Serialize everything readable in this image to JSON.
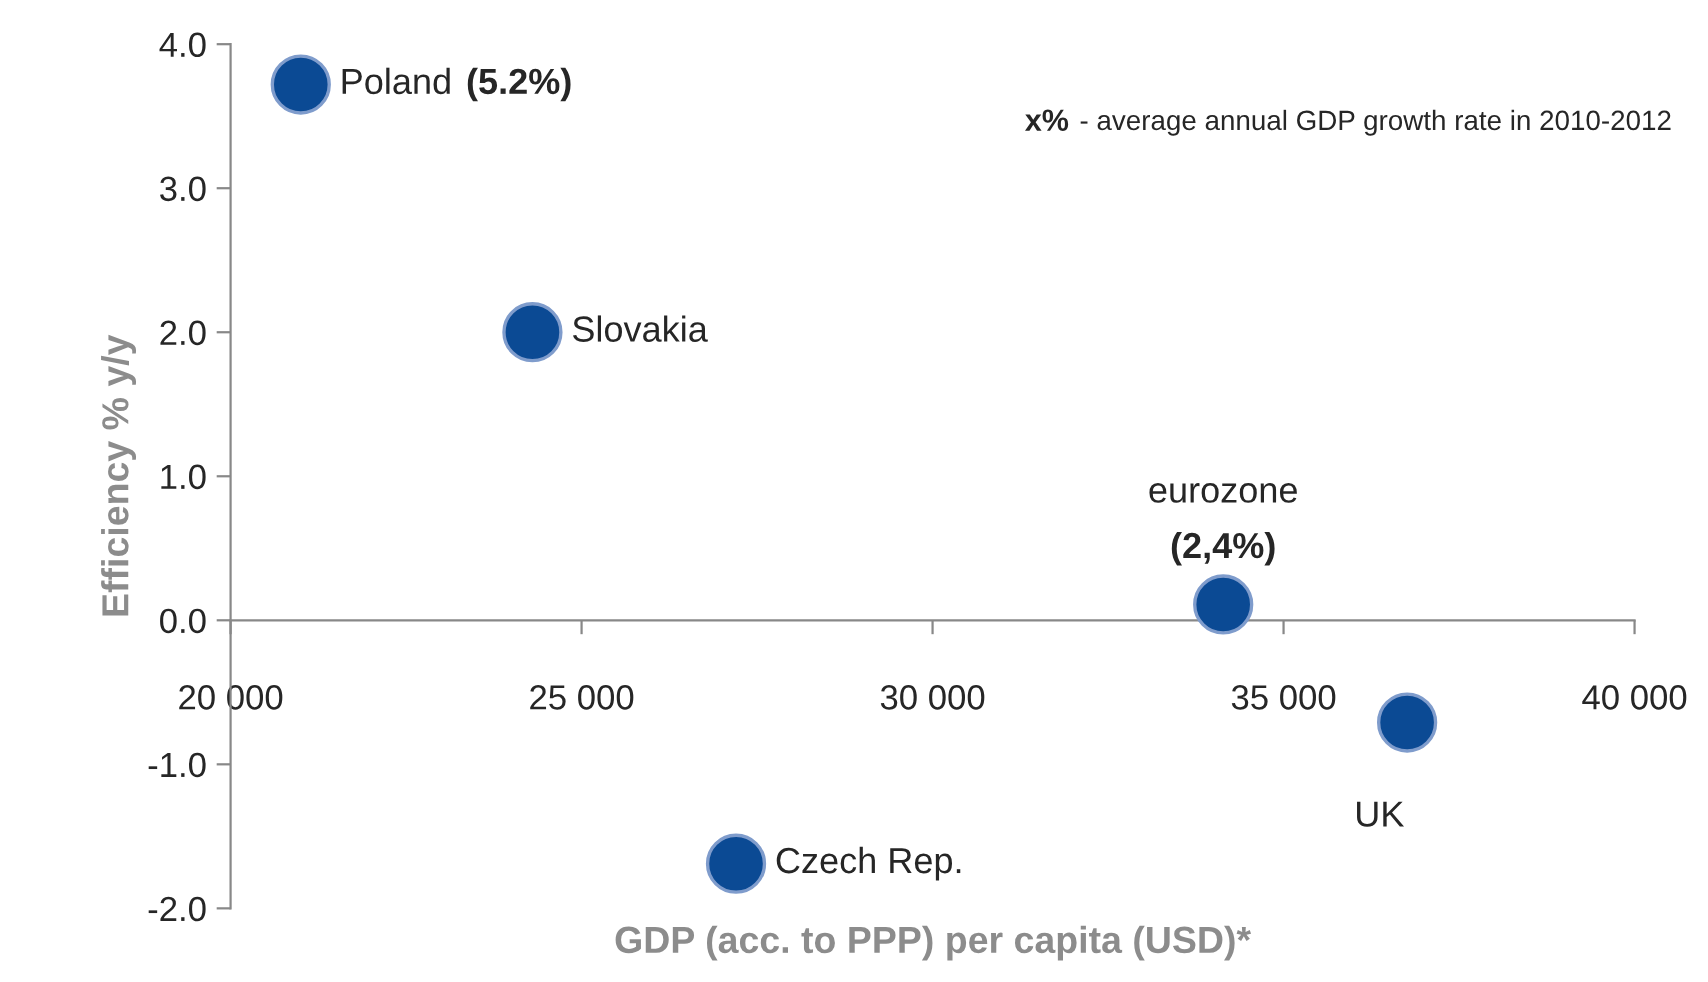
{
  "chart_data": {
    "type": "scatter",
    "xlabel": "GDP (acc. to PPP) per capita (USD)*",
    "ylabel": "Efficiency % y/y",
    "series": [
      {
        "name": "Poland",
        "color": "#0b4a94",
        "x": [
          21000
        ],
        "values": [
          3.72
        ]
      },
      {
        "name": "Slovakia",
        "color": "#0b4a94",
        "x": [
          24300
        ],
        "values": [
          2.0
        ]
      },
      {
        "name": "eurozone",
        "color": "#0b4a94",
        "x": [
          34140
        ],
        "values": [
          0.11
        ]
      },
      {
        "name": "UK",
        "color": "#0b4a94",
        "x": [
          36760
        ],
        "values": [
          -0.71
        ]
      },
      {
        "name": "Czech Rep.",
        "color": "#0b4a94",
        "x": [
          27200
        ],
        "values": [
          -1.69
        ]
      }
    ],
    "annotations": [
      "(5.2%)",
      {
        "text": "(2,4%)",
        "x": 34140,
        "y": 0.11
      },
      "x%",
      "- average annual GDP growth rate in 2010-2012"
    ],
    "xlim": [
      20000,
      40000
    ],
    "xticks": [
      {
        "value": 20000,
        "label": "20 000"
      },
      {
        "value": 25000,
        "label": "25 000"
      },
      {
        "value": 30000,
        "label": "30 000"
      },
      {
        "value": 35000,
        "label": "35 000"
      },
      {
        "value": 40000,
        "label": "40 000"
      }
    ],
    "ylim": [
      -2.0,
      4.0
    ],
    "yticks": [
      {
        "value": -2,
        "label": "-2.0"
      },
      {
        "value": -1,
        "label": "-1.0"
      },
      {
        "value": 0,
        "label": "0.0"
      },
      {
        "value": 1,
        "label": "1.0"
      },
      {
        "value": 2,
        "label": "2.0"
      },
      {
        "value": 3,
        "label": "3.0"
      },
      {
        "value": 4,
        "label": "4.0"
      }
    ],
    "marker": "circle",
    "grid": false,
    "legend": false
  }
}
